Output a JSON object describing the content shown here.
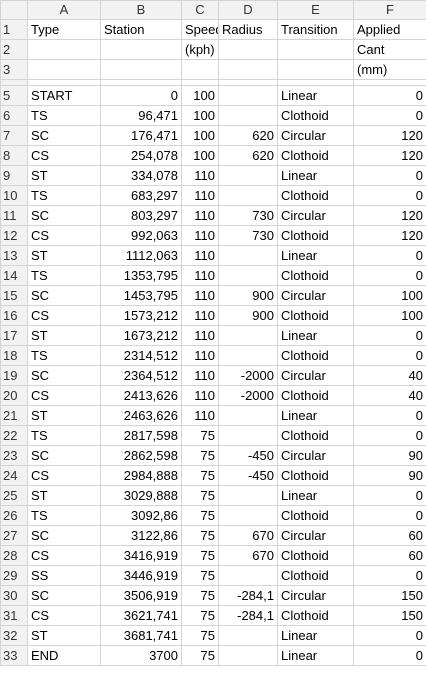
{
  "columns": [
    "A",
    "B",
    "C",
    "D",
    "E",
    "F"
  ],
  "header_rows": [
    {
      "row": "1",
      "cells": [
        "Type",
        "Station",
        "Speed",
        "Radius",
        "Transition",
        "Applied"
      ]
    },
    {
      "row": "2",
      "cells": [
        "",
        "",
        "(kph)",
        "",
        "",
        "Cant"
      ]
    },
    {
      "row": "3",
      "cells": [
        "",
        "",
        "",
        "",
        "",
        "(mm)"
      ]
    },
    {
      "row": "4",
      "cells": [
        "",
        "",
        "",
        "",
        "",
        ""
      ]
    }
  ],
  "rows": [
    {
      "row": "5",
      "type": "START",
      "station": "0",
      "speed": "100",
      "radius": "",
      "transition": "Linear",
      "cant": "0"
    },
    {
      "row": "6",
      "type": "TS",
      "station": "96,471",
      "speed": "100",
      "radius": "",
      "transition": "Clothoid",
      "cant": "0"
    },
    {
      "row": "7",
      "type": "SC",
      "station": "176,471",
      "speed": "100",
      "radius": "620",
      "transition": "Circular",
      "cant": "120"
    },
    {
      "row": "8",
      "type": "CS",
      "station": "254,078",
      "speed": "100",
      "radius": "620",
      "transition": "Clothoid",
      "cant": "120"
    },
    {
      "row": "9",
      "type": "ST",
      "station": "334,078",
      "speed": "110",
      "radius": "",
      "transition": "Linear",
      "cant": "0"
    },
    {
      "row": "10",
      "type": "TS",
      "station": "683,297",
      "speed": "110",
      "radius": "",
      "transition": "Clothoid",
      "cant": "0"
    },
    {
      "row": "11",
      "type": "SC",
      "station": "803,297",
      "speed": "110",
      "radius": "730",
      "transition": "Circular",
      "cant": "120"
    },
    {
      "row": "12",
      "type": "CS",
      "station": "992,063",
      "speed": "110",
      "radius": "730",
      "transition": "Clothoid",
      "cant": "120"
    },
    {
      "row": "13",
      "type": "ST",
      "station": "1112,063",
      "speed": "110",
      "radius": "",
      "transition": "Linear",
      "cant": "0"
    },
    {
      "row": "14",
      "type": "TS",
      "station": "1353,795",
      "speed": "110",
      "radius": "",
      "transition": "Clothoid",
      "cant": "0"
    },
    {
      "row": "15",
      "type": "SC",
      "station": "1453,795",
      "speed": "110",
      "radius": "900",
      "transition": "Circular",
      "cant": "100"
    },
    {
      "row": "16",
      "type": "CS",
      "station": "1573,212",
      "speed": "110",
      "radius": "900",
      "transition": "Clothoid",
      "cant": "100"
    },
    {
      "row": "17",
      "type": "ST",
      "station": "1673,212",
      "speed": "110",
      "radius": "",
      "transition": "Linear",
      "cant": "0"
    },
    {
      "row": "18",
      "type": "TS",
      "station": "2314,512",
      "speed": "110",
      "radius": "",
      "transition": "Clothoid",
      "cant": "0"
    },
    {
      "row": "19",
      "type": "SC",
      "station": "2364,512",
      "speed": "110",
      "radius": "-2000",
      "transition": "Circular",
      "cant": "40"
    },
    {
      "row": "20",
      "type": "CS",
      "station": "2413,626",
      "speed": "110",
      "radius": "-2000",
      "transition": "Clothoid",
      "cant": "40"
    },
    {
      "row": "21",
      "type": "ST",
      "station": "2463,626",
      "speed": "110",
      "radius": "",
      "transition": "Linear",
      "cant": "0"
    },
    {
      "row": "22",
      "type": "TS",
      "station": "2817,598",
      "speed": "75",
      "radius": "",
      "transition": "Clothoid",
      "cant": "0"
    },
    {
      "row": "23",
      "type": "SC",
      "station": "2862,598",
      "speed": "75",
      "radius": "-450",
      "transition": "Circular",
      "cant": "90"
    },
    {
      "row": "24",
      "type": "CS",
      "station": "2984,888",
      "speed": "75",
      "radius": "-450",
      "transition": "Clothoid",
      "cant": "90"
    },
    {
      "row": "25",
      "type": "ST",
      "station": "3029,888",
      "speed": "75",
      "radius": "",
      "transition": "Linear",
      "cant": "0"
    },
    {
      "row": "26",
      "type": "TS",
      "station": "3092,86",
      "speed": "75",
      "radius": "",
      "transition": "Clothoid",
      "cant": "0"
    },
    {
      "row": "27",
      "type": "SC",
      "station": "3122,86",
      "speed": "75",
      "radius": "670",
      "transition": "Circular",
      "cant": "60"
    },
    {
      "row": "28",
      "type": "CS",
      "station": "3416,919",
      "speed": "75",
      "radius": "670",
      "transition": "Clothoid",
      "cant": "60"
    },
    {
      "row": "29",
      "type": "SS",
      "station": "3446,919",
      "speed": "75",
      "radius": "",
      "transition": "Clothoid",
      "cant": "0"
    },
    {
      "row": "30",
      "type": "SC",
      "station": "3506,919",
      "speed": "75",
      "radius": "-284,1",
      "transition": "Circular",
      "cant": "150"
    },
    {
      "row": "31",
      "type": "CS",
      "station": "3621,741",
      "speed": "75",
      "radius": "-284,1",
      "transition": "Clothoid",
      "cant": "150"
    },
    {
      "row": "32",
      "type": "ST",
      "station": "3681,741",
      "speed": "75",
      "radius": "",
      "transition": "Linear",
      "cant": "0"
    },
    {
      "row": "33",
      "type": "END",
      "station": "3700",
      "speed": "75",
      "radius": "",
      "transition": "Linear",
      "cant": "0"
    }
  ]
}
